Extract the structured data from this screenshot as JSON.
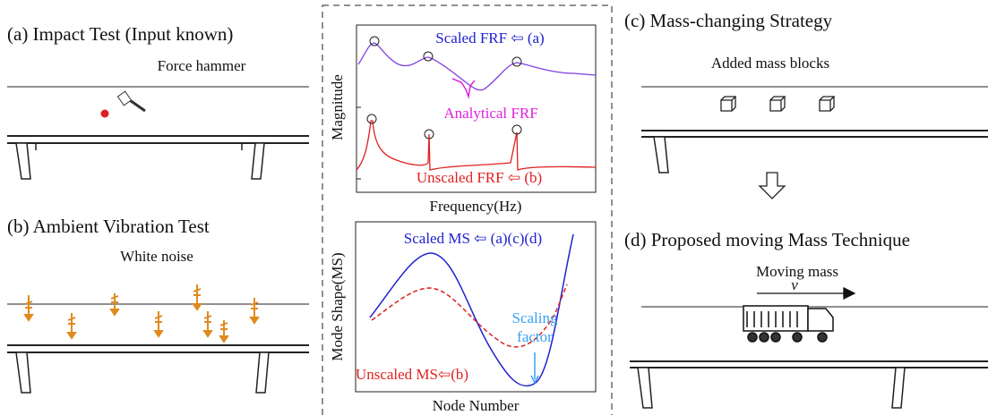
{
  "panels": [
    {
      "title": "(a) Impact Test (Input known)",
      "caption": "Force hammer"
    },
    {
      "title": "(b) Ambient Vibration Test",
      "caption": "White noise"
    },
    {
      "title": "(c)  Mass-changing Strategy",
      "caption": "Added mass blocks"
    },
    {
      "title": "(d) Proposed moving Mass Technique",
      "caption": "Moving mass",
      "velocity_label": "v"
    }
  ],
  "frf_plot": {
    "y_label": "Magnitude",
    "x_label": "Frequency(Hz)",
    "scaled_label": "Scaled FRF ⇦  (a)",
    "analytical_label": "Analytical FRF",
    "unscaled_label": "Unscaled FRF ⇦  (b)"
  },
  "ms_plot": {
    "y_label": "Mode Shape(MS)",
    "x_label": "Node Number",
    "scaled_label": "Scaled MS ⇦ (a)(c)(d)",
    "scaling_label": [
      "Scaling",
      "factor"
    ],
    "unscaled_label": "Unscaled MS⇦(b)"
  }
}
